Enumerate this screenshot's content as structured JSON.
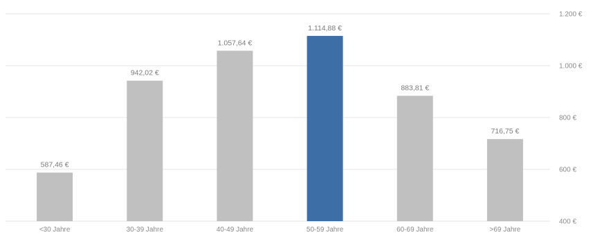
{
  "chart_data": {
    "type": "bar",
    "categories": [
      "<30 Jahre",
      "30-39 Jahre",
      "40-49 Jahre",
      "50-59 Jahre",
      "60-69 Jahre",
      ">69 Jahre"
    ],
    "values": [
      587.46,
      942.02,
      1057.64,
      1114.88,
      883.81,
      716.75
    ],
    "data_labels": [
      "587,46 €",
      "942,02 €",
      "1.057,64 €",
      "1.114,88 €",
      "883,81 €",
      "716,75 €"
    ],
    "highlight_index": 3,
    "ylim": [
      400,
      1200
    ],
    "y_ticks": [
      400,
      600,
      800,
      1000,
      1200
    ],
    "y_tick_labels": [
      "400 €",
      "600 €",
      "800 €",
      "1.000 €",
      "1.200 €"
    ],
    "y_axis_position": "right",
    "grid": true,
    "title": "",
    "xlabel": "",
    "ylabel": "",
    "colors": {
      "bar": "#c0c0c0",
      "highlight": "#3d6fa6",
      "grid": "#e6e6e6",
      "text": "#8a8a8a"
    }
  }
}
